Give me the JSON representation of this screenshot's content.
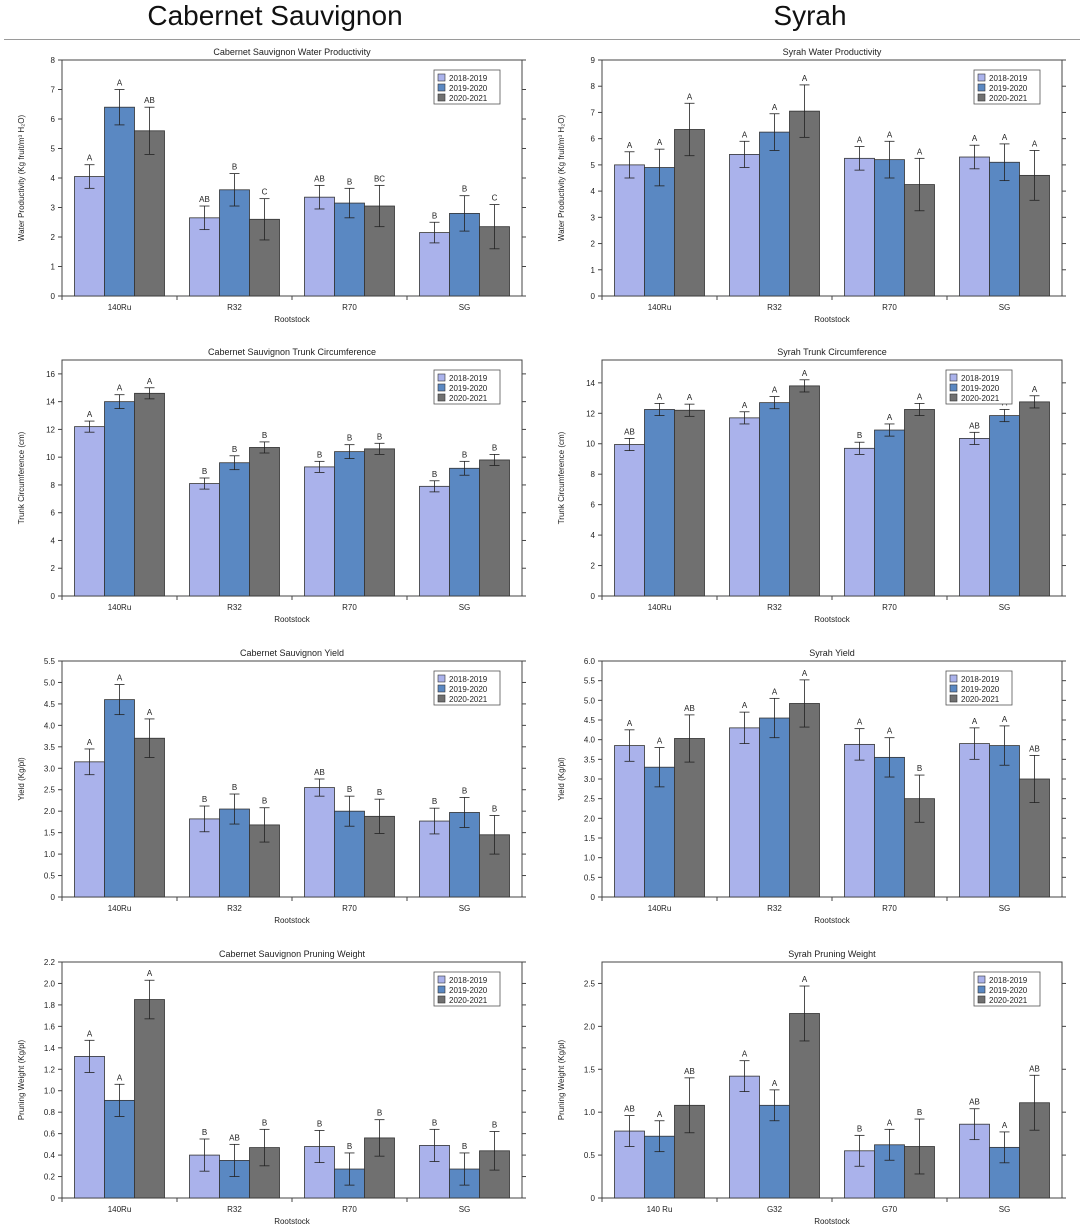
{
  "columns": {
    "left": "Cabernet Sauvignon",
    "right": "Syrah"
  },
  "colors": {
    "s2018": "#aab2eb",
    "s2019": "#5a88c2",
    "s2020": "#707070"
  },
  "chart_data": [
    {
      "type": "bar",
      "title": "Cabernet Sauvignon Water Productivity",
      "xlabel": "Rootstock",
      "ylabel": "Water Productivity (Kg fruit/m³ H₂O)",
      "ylim": [
        0,
        8
      ],
      "yticks": [
        "0",
        "1",
        "2",
        "3",
        "4",
        "5",
        "6",
        "7",
        "8"
      ],
      "categories": [
        "140Ru",
        "R32",
        "R70",
        "SG"
      ],
      "series": [
        {
          "name": "2018-2019",
          "values": [
            4.05,
            2.65,
            3.35,
            2.15
          ],
          "errors": [
            0.4,
            0.4,
            0.4,
            0.35
          ],
          "letters": [
            "A",
            "AB",
            "AB",
            "B"
          ]
        },
        {
          "name": "2019-2020",
          "values": [
            6.4,
            3.6,
            3.15,
            2.8
          ],
          "errors": [
            0.6,
            0.55,
            0.5,
            0.6
          ],
          "letters": [
            "A",
            "B",
            "B",
            "B"
          ]
        },
        {
          "name": "2020-2021",
          "values": [
            5.6,
            2.6,
            3.05,
            2.35
          ],
          "errors": [
            0.8,
            0.7,
            0.7,
            0.75
          ],
          "letters": [
            "AB",
            "C",
            "BC",
            "C"
          ]
        }
      ]
    },
    {
      "type": "bar",
      "title": "Syrah Water Productivity",
      "xlabel": "Rootstock",
      "ylabel": "Water Productivity (Kg fruit/m³ H₂O)",
      "ylim": [
        0,
        9
      ],
      "yticks": [
        "0",
        "1",
        "2",
        "3",
        "4",
        "5",
        "6",
        "7",
        "8",
        "9"
      ],
      "categories": [
        "140Ru",
        "R32",
        "R70",
        "SG"
      ],
      "series": [
        {
          "name": "2018-2019",
          "values": [
            5.0,
            5.4,
            5.25,
            5.3
          ],
          "errors": [
            0.5,
            0.5,
            0.45,
            0.45
          ],
          "letters": [
            "A",
            "A",
            "A",
            "A"
          ]
        },
        {
          "name": "2019-2020",
          "values": [
            4.9,
            6.25,
            5.2,
            5.1
          ],
          "errors": [
            0.7,
            0.7,
            0.7,
            0.7
          ],
          "letters": [
            "A",
            "A",
            "A",
            "A"
          ]
        },
        {
          "name": "2020-2021",
          "values": [
            6.35,
            7.05,
            4.25,
            4.6
          ],
          "errors": [
            1.0,
            1.0,
            1.0,
            0.95
          ],
          "letters": [
            "A",
            "A",
            "A",
            "A"
          ]
        }
      ]
    },
    {
      "type": "bar",
      "title": "Cabernet Sauvignon Trunk Circumference",
      "xlabel": "Rootstock",
      "ylabel": "Trunk Circumference (cm)",
      "ylim": [
        0,
        17
      ],
      "yticks": [
        "0",
        "2",
        "4",
        "6",
        "8",
        "10",
        "12",
        "14",
        "16"
      ],
      "categories": [
        "140Ru",
        "R32",
        "R70",
        "SG"
      ],
      "series": [
        {
          "name": "2018-2019",
          "values": [
            12.2,
            8.1,
            9.3,
            7.9
          ],
          "errors": [
            0.4,
            0.4,
            0.4,
            0.4
          ],
          "letters": [
            "A",
            "B",
            "B",
            "B"
          ]
        },
        {
          "name": "2019-2020",
          "values": [
            14.0,
            9.6,
            10.4,
            9.2
          ],
          "errors": [
            0.5,
            0.5,
            0.5,
            0.5
          ],
          "letters": [
            "A",
            "B",
            "B",
            "B"
          ]
        },
        {
          "name": "2020-2021",
          "values": [
            14.6,
            10.7,
            10.6,
            9.8
          ],
          "errors": [
            0.4,
            0.4,
            0.4,
            0.4
          ],
          "letters": [
            "A",
            "B",
            "B",
            "B"
          ]
        }
      ]
    },
    {
      "type": "bar",
      "title": "Syrah Trunk Circumference",
      "xlabel": "Rootstock",
      "ylabel": "Trunk Circumference (cm)",
      "ylim": [
        0,
        15.5
      ],
      "yticks": [
        "0",
        "2",
        "4",
        "6",
        "8",
        "10",
        "12",
        "14"
      ],
      "categories": [
        "140Ru",
        "R32",
        "R70",
        "SG"
      ],
      "series": [
        {
          "name": "2018-2019",
          "values": [
            9.95,
            11.7,
            9.7,
            10.35
          ],
          "errors": [
            0.4,
            0.4,
            0.4,
            0.4
          ],
          "letters": [
            "AB",
            "A",
            "B",
            "AB"
          ]
        },
        {
          "name": "2019-2020",
          "values": [
            12.25,
            12.7,
            10.9,
            11.85
          ],
          "errors": [
            0.4,
            0.4,
            0.4,
            0.4
          ],
          "letters": [
            "A",
            "A",
            "A",
            "A"
          ]
        },
        {
          "name": "2020-2021",
          "values": [
            12.2,
            13.8,
            12.25,
            12.75
          ],
          "errors": [
            0.4,
            0.4,
            0.4,
            0.4
          ],
          "letters": [
            "A",
            "A",
            "A",
            "A"
          ]
        }
      ]
    },
    {
      "type": "bar",
      "title": "Cabernet Sauvignon Yield",
      "xlabel": "Rootstock",
      "ylabel": "Yield (Kg/pl)",
      "ylim": [
        0,
        5.5
      ],
      "yticks": [
        "0",
        "0.5",
        "1.0",
        "1.5",
        "2.0",
        "2.5",
        "3.0",
        "3.5",
        "4.0",
        "4.5",
        "5.0",
        "5.5"
      ],
      "categories": [
        "140Ru",
        "R32",
        "R70",
        "SG"
      ],
      "series": [
        {
          "name": "2018-2019",
          "values": [
            3.15,
            1.82,
            2.55,
            1.77
          ],
          "errors": [
            0.3,
            0.3,
            0.2,
            0.3
          ],
          "letters": [
            "A",
            "B",
            "AB",
            "B"
          ]
        },
        {
          "name": "2019-2020",
          "values": [
            4.6,
            2.05,
            2.0,
            1.97
          ],
          "errors": [
            0.35,
            0.35,
            0.35,
            0.35
          ],
          "letters": [
            "A",
            "B",
            "B",
            "B"
          ]
        },
        {
          "name": "2020-2021",
          "values": [
            3.7,
            1.68,
            1.88,
            1.45
          ],
          "errors": [
            0.45,
            0.4,
            0.4,
            0.45
          ],
          "letters": [
            "A",
            "B",
            "B",
            "B"
          ]
        }
      ]
    },
    {
      "type": "bar",
      "title": "Syrah Yield",
      "xlabel": "Rootstock",
      "ylabel": "Yield (Kg/pl)",
      "ylim": [
        0,
        6.0
      ],
      "yticks": [
        "0",
        "0.5",
        "1.0",
        "1.5",
        "2.0",
        "2.5",
        "3.0",
        "3.5",
        "4.0",
        "4.5",
        "5.0",
        "5.5",
        "6.0"
      ],
      "categories": [
        "140Ru",
        "R32",
        "R70",
        "SG"
      ],
      "series": [
        {
          "name": "2018-2019",
          "values": [
            3.85,
            4.3,
            3.88,
            3.9
          ],
          "errors": [
            0.4,
            0.4,
            0.4,
            0.4
          ],
          "letters": [
            "A",
            "A",
            "A",
            "A"
          ]
        },
        {
          "name": "2019-2020",
          "values": [
            3.3,
            4.55,
            3.55,
            3.85
          ],
          "errors": [
            0.5,
            0.5,
            0.5,
            0.5
          ],
          "letters": [
            "A",
            "A",
            "A",
            "A"
          ]
        },
        {
          "name": "2020-2021",
          "values": [
            4.03,
            4.92,
            2.5,
            3.0
          ],
          "errors": [
            0.6,
            0.6,
            0.6,
            0.6
          ],
          "letters": [
            "AB",
            "A",
            "B",
            "AB"
          ]
        }
      ]
    },
    {
      "type": "bar",
      "title": "Cabernet Sauvignon Pruning Weight",
      "xlabel": "Rootstock",
      "ylabel": "Pruning Weight (Kg/pl)",
      "ylim": [
        0,
        2.2
      ],
      "yticks": [
        "0",
        "0.2",
        "0.4",
        "0.6",
        "0.8",
        "1.0",
        "1.2",
        "1.4",
        "1.6",
        "1.8",
        "2.0",
        "2.2"
      ],
      "categories": [
        "140Ru",
        "R32",
        "R70",
        "SG"
      ],
      "series": [
        {
          "name": "2018-2019",
          "values": [
            1.32,
            0.4,
            0.48,
            0.49
          ],
          "errors": [
            0.15,
            0.15,
            0.15,
            0.15
          ],
          "letters": [
            "A",
            "B",
            "B",
            "B"
          ]
        },
        {
          "name": "2019-2020",
          "values": [
            0.91,
            0.35,
            0.27,
            0.27
          ],
          "errors": [
            0.15,
            0.15,
            0.15,
            0.15
          ],
          "letters": [
            "A",
            "AB",
            "B",
            "B"
          ]
        },
        {
          "name": "2020-2021",
          "values": [
            1.85,
            0.47,
            0.56,
            0.44
          ],
          "errors": [
            0.18,
            0.17,
            0.17,
            0.18
          ],
          "letters": [
            "A",
            "B",
            "B",
            "B"
          ]
        }
      ]
    },
    {
      "type": "bar",
      "title": "Syrah Pruning Weight",
      "xlabel": "Rootstock",
      "ylabel": "Pruning Weight (Kg/pl)",
      "ylim": [
        0,
        2.75
      ],
      "yticks": [
        "0",
        "0.5",
        "1.0",
        "1.5",
        "2.0",
        "2.5"
      ],
      "categories": [
        "140 Ru",
        "G32",
        "G70",
        "SG"
      ],
      "series": [
        {
          "name": "2018-2019",
          "values": [
            0.78,
            1.42,
            0.55,
            0.86
          ],
          "errors": [
            0.18,
            0.18,
            0.18,
            0.18
          ],
          "letters": [
            "AB",
            "A",
            "B",
            "AB"
          ]
        },
        {
          "name": "2019-2020",
          "values": [
            0.72,
            1.08,
            0.62,
            0.59
          ],
          "errors": [
            0.18,
            0.18,
            0.18,
            0.18
          ],
          "letters": [
            "A",
            "A",
            "A",
            "A"
          ]
        },
        {
          "name": "2020-2021",
          "values": [
            1.08,
            2.15,
            0.6,
            1.11
          ],
          "errors": [
            0.32,
            0.32,
            0.32,
            0.32
          ],
          "letters": [
            "AB",
            "A",
            "B",
            "AB"
          ]
        }
      ]
    }
  ]
}
